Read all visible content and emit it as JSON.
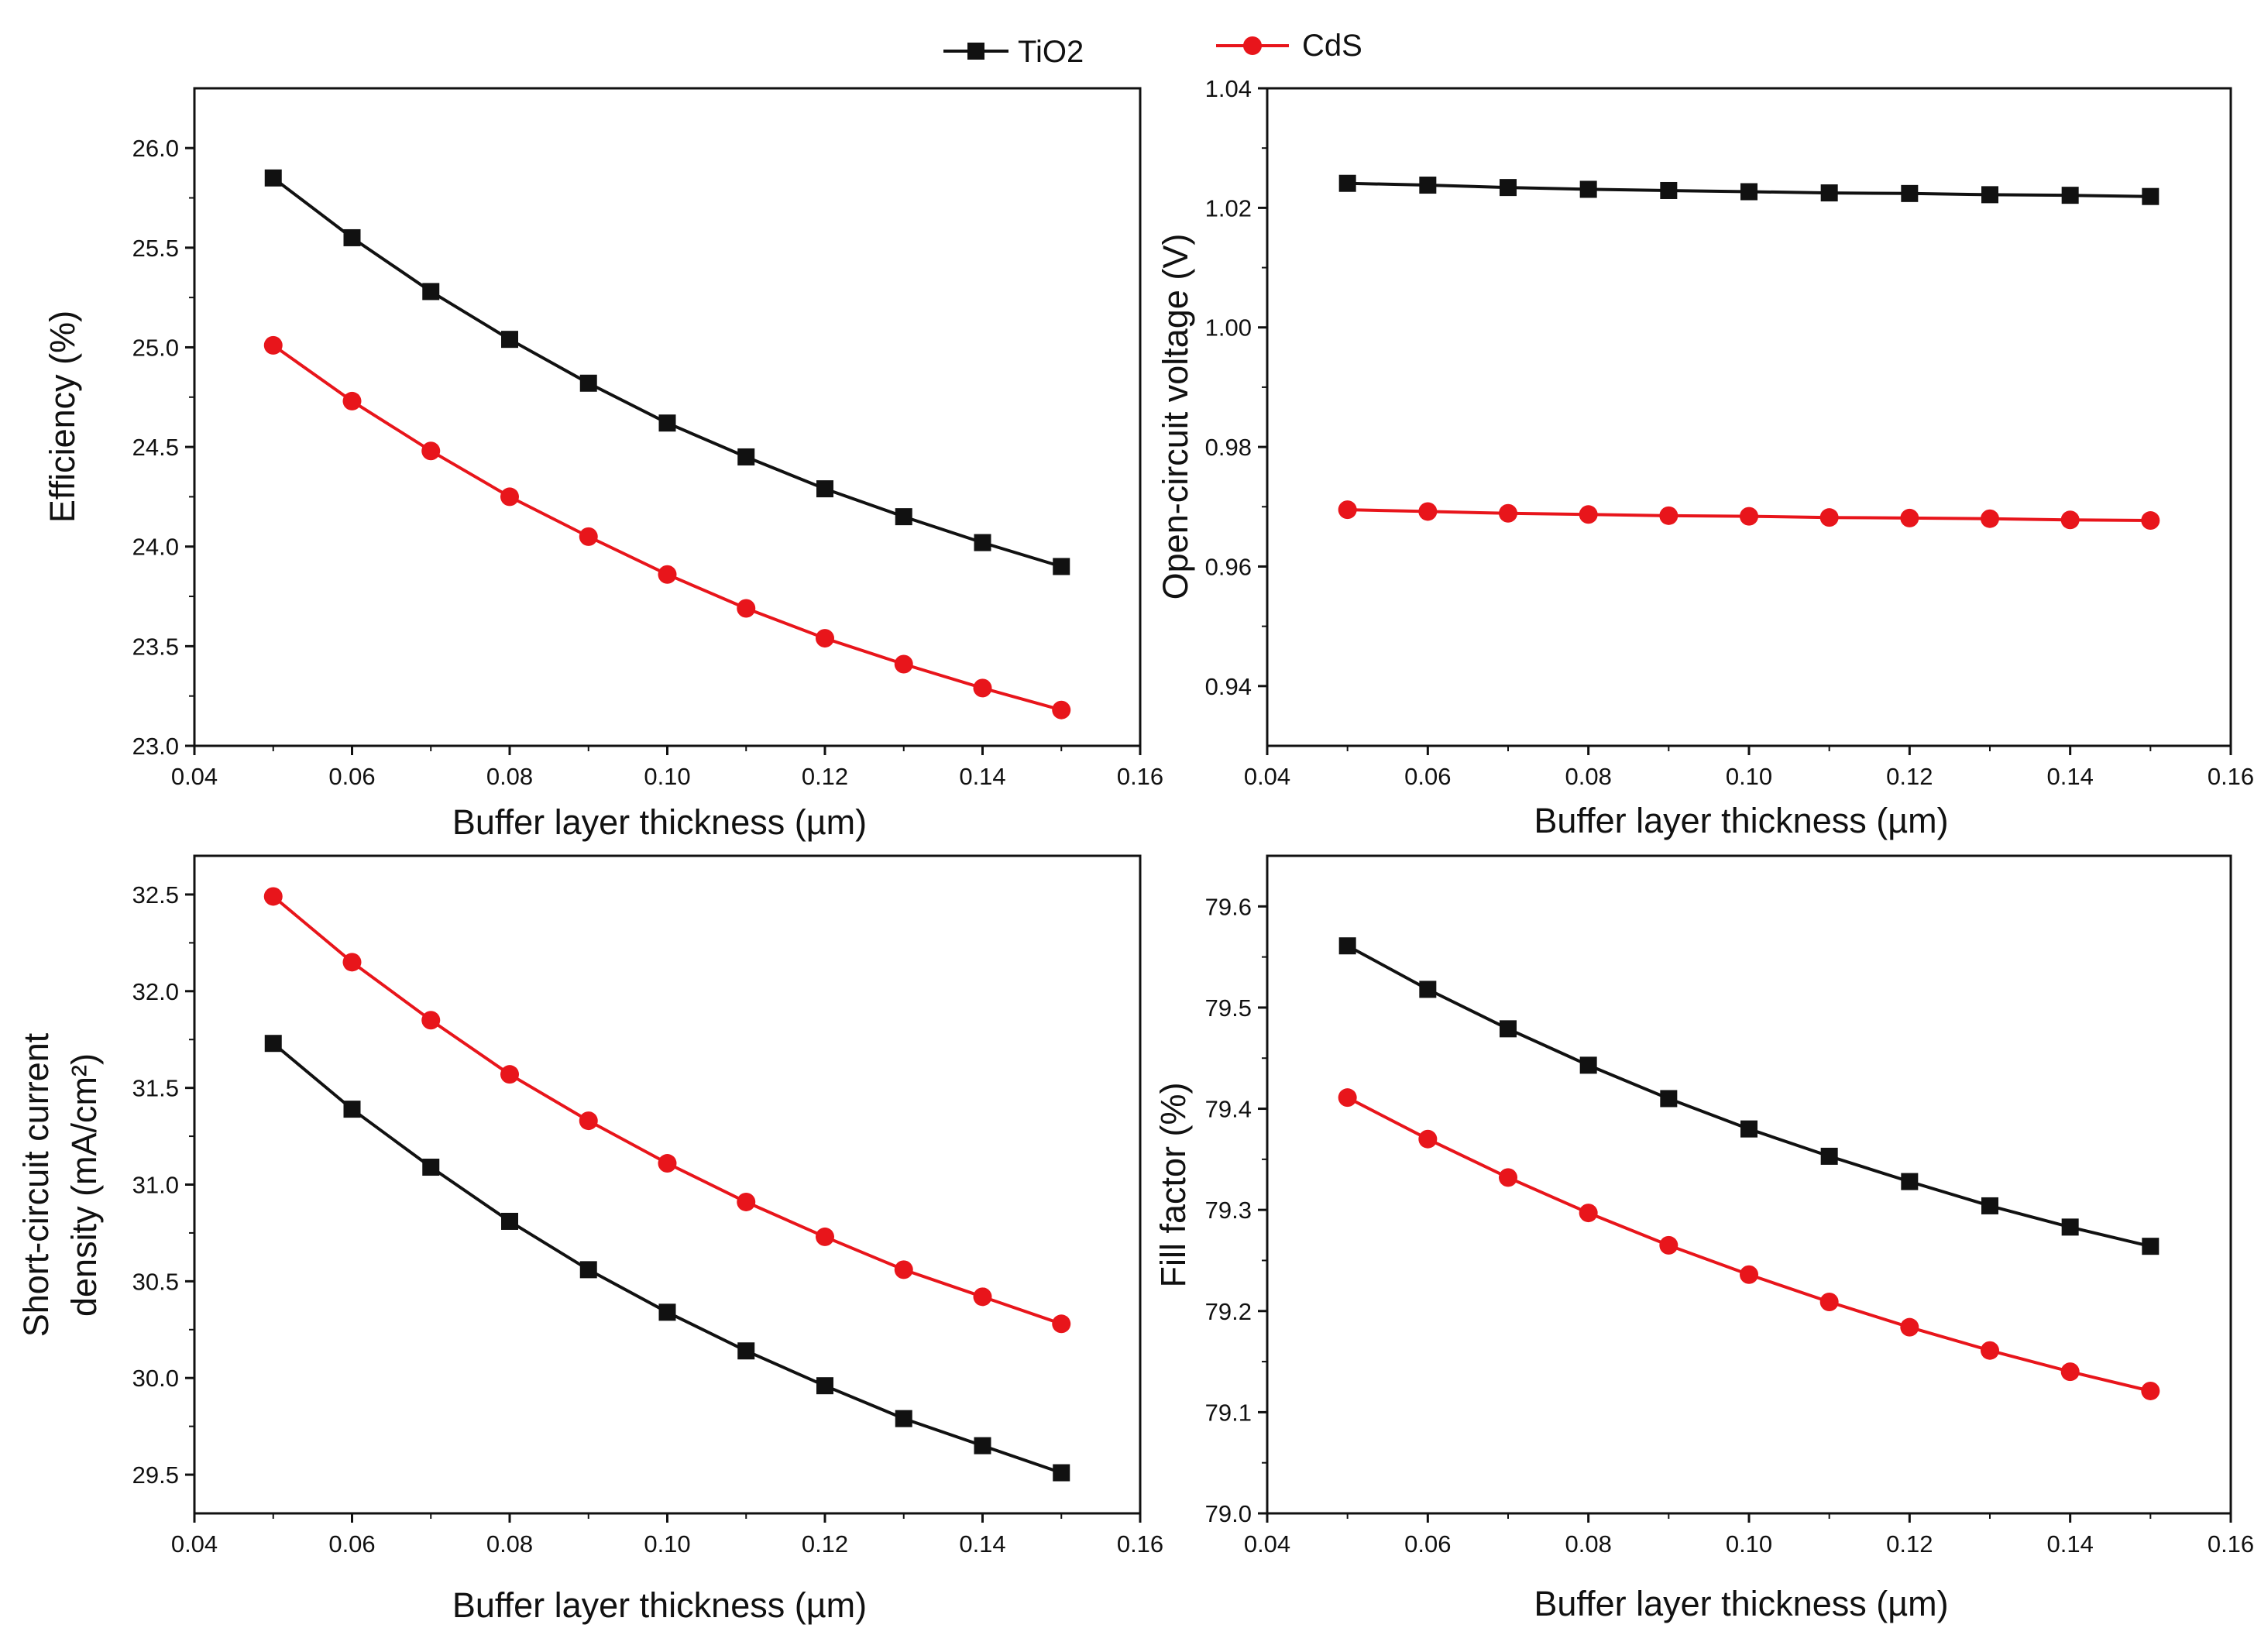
{
  "legend": [
    {
      "name": "TiO2",
      "color": "#111111",
      "marker": "square"
    },
    {
      "name": "CdS",
      "color": "#e8151b",
      "marker": "circle"
    }
  ],
  "chart_data": [
    {
      "id": "efficiency",
      "type": "line",
      "title": "",
      "xlabel": "Buffer layer thickness (µm)",
      "ylabel": "Efficiency (%)",
      "xlim": [
        0.04,
        0.16
      ],
      "ylim": [
        23.0,
        26.3
      ],
      "xticks": [
        "0.04",
        "0.06",
        "0.08",
        "0.10",
        "0.12",
        "0.14",
        "0.16"
      ],
      "xtick_values": [
        0.04,
        0.06,
        0.08,
        0.1,
        0.12,
        0.14,
        0.16
      ],
      "yticks": [
        "23.0",
        "23.5",
        "24.0",
        "24.5",
        "25.0",
        "25.5",
        "26.0"
      ],
      "ytick_values": [
        23.0,
        23.5,
        24.0,
        24.5,
        25.0,
        25.5,
        26.0
      ],
      "x": [
        0.05,
        0.06,
        0.07,
        0.08,
        0.09,
        0.1,
        0.11,
        0.12,
        0.13,
        0.14,
        0.15
      ],
      "series": [
        {
          "name": "TiO2",
          "values": [
            25.85,
            25.55,
            25.28,
            25.04,
            24.82,
            24.62,
            24.45,
            24.29,
            24.15,
            24.02,
            23.9
          ]
        },
        {
          "name": "CdS",
          "values": [
            25.01,
            24.73,
            24.48,
            24.25,
            24.05,
            23.86,
            23.69,
            23.54,
            23.41,
            23.29,
            23.18
          ]
        }
      ]
    },
    {
      "id": "voc",
      "type": "line",
      "title": "",
      "xlabel": "Buffer layer thickness (µm)",
      "ylabel": "Open-circuit voltage (V)",
      "xlim": [
        0.04,
        0.16
      ],
      "ylim": [
        0.93,
        1.04
      ],
      "xticks": [
        "0.04",
        "0.06",
        "0.08",
        "0.10",
        "0.12",
        "0.14",
        "0.16"
      ],
      "xtick_values": [
        0.04,
        0.06,
        0.08,
        0.1,
        0.12,
        0.14,
        0.16
      ],
      "yticks": [
        "0.94",
        "0.96",
        "0.98",
        "1.00",
        "1.02",
        "1.04"
      ],
      "ytick_values": [
        0.94,
        0.96,
        0.98,
        1.0,
        1.02,
        1.04
      ],
      "x": [
        0.05,
        0.06,
        0.07,
        0.08,
        0.09,
        0.1,
        0.11,
        0.12,
        0.13,
        0.14,
        0.15
      ],
      "series": [
        {
          "name": "TiO2",
          "values": [
            1.0241,
            1.0238,
            1.0234,
            1.0231,
            1.0229,
            1.0227,
            1.0225,
            1.0224,
            1.0222,
            1.0221,
            1.0219
          ]
        },
        {
          "name": "CdS",
          "values": [
            0.9695,
            0.9692,
            0.9689,
            0.9687,
            0.9685,
            0.9684,
            0.9682,
            0.9681,
            0.968,
            0.9678,
            0.9677
          ]
        }
      ]
    },
    {
      "id": "jsc",
      "type": "line",
      "title": "",
      "xlabel": "Buffer layer thickness  (µm)",
      "ylabel_lines": [
        "Short-circuit current",
        "density (mA/cm²)"
      ],
      "xlim": [
        0.04,
        0.16
      ],
      "ylim": [
        29.3,
        32.7
      ],
      "xticks": [
        "0.04",
        "0.06",
        "0.08",
        "0.10",
        "0.12",
        "0.14",
        "0.16"
      ],
      "xtick_values": [
        0.04,
        0.06,
        0.08,
        0.1,
        0.12,
        0.14,
        0.16
      ],
      "yticks": [
        "29.5",
        "30.0",
        "30.5",
        "31.0",
        "31.5",
        "32.0",
        "32.5"
      ],
      "ytick_values": [
        29.5,
        30.0,
        30.5,
        31.0,
        31.5,
        32.0,
        32.5
      ],
      "x": [
        0.05,
        0.06,
        0.07,
        0.08,
        0.09,
        0.1,
        0.11,
        0.12,
        0.13,
        0.14,
        0.15
      ],
      "series": [
        {
          "name": "TiO2",
          "values": [
            31.73,
            31.39,
            31.09,
            30.81,
            30.56,
            30.34,
            30.14,
            29.96,
            29.79,
            29.65,
            29.51
          ]
        },
        {
          "name": "CdS",
          "values": [
            32.49,
            32.15,
            31.85,
            31.57,
            31.33,
            31.11,
            30.91,
            30.73,
            30.56,
            30.42,
            30.28
          ]
        }
      ]
    },
    {
      "id": "ff",
      "type": "line",
      "title": "",
      "xlabel": "Buffer layer thickness (µm)",
      "ylabel": "Fill factor (%)",
      "xlim": [
        0.04,
        0.16
      ],
      "ylim": [
        79.0,
        79.65
      ],
      "xticks": [
        "0.04",
        "0.06",
        "0.08",
        "0.10",
        "0.12",
        "0.14",
        "0.16"
      ],
      "xtick_values": [
        0.04,
        0.06,
        0.08,
        0.1,
        0.12,
        0.14,
        0.16
      ],
      "yticks": [
        "79.0",
        "79.1",
        "79.2",
        "79.3",
        "79.4",
        "79.5",
        "79.6"
      ],
      "ytick_values": [
        79.0,
        79.1,
        79.2,
        79.3,
        79.4,
        79.5,
        79.6
      ],
      "x": [
        0.05,
        0.06,
        0.07,
        0.08,
        0.09,
        0.1,
        0.11,
        0.12,
        0.13,
        0.14,
        0.15
      ],
      "series": [
        {
          "name": "TiO2",
          "values": [
            79.561,
            79.518,
            79.479,
            79.443,
            79.41,
            79.38,
            79.353,
            79.328,
            79.304,
            79.283,
            79.264
          ]
        },
        {
          "name": "CdS",
          "values": [
            79.411,
            79.37,
            79.332,
            79.297,
            79.265,
            79.236,
            79.209,
            79.184,
            79.161,
            79.14,
            79.121
          ]
        }
      ]
    }
  ]
}
